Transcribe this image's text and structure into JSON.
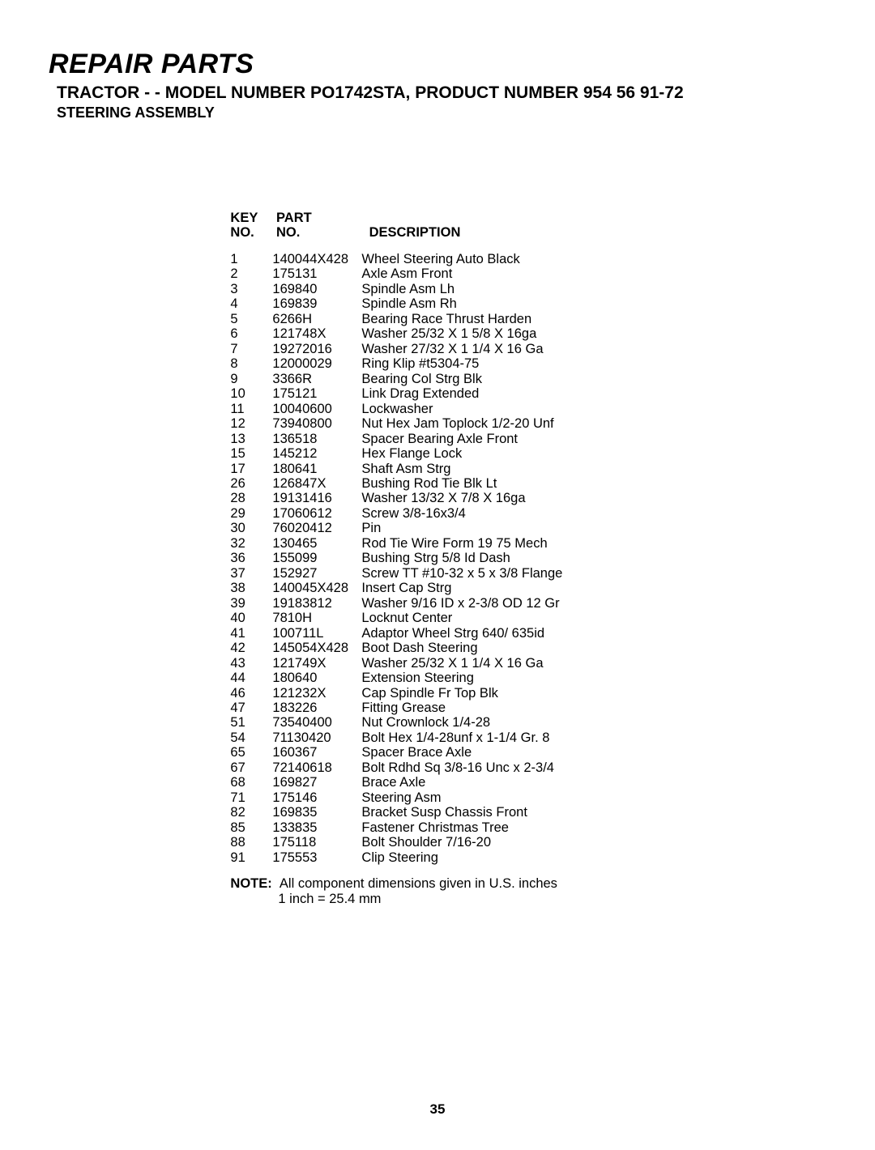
{
  "header": {
    "section_title": "REPAIR PARTS",
    "subtitle": "TRACTOR - - MODEL NUMBER PO1742STA, PRODUCT NUMBER 954 56 91-72",
    "assembly": "STEERING ASSEMBLY"
  },
  "table": {
    "columns": {
      "key_line1": "KEY",
      "key_line2": "NO.",
      "part_line1": "PART",
      "part_line2": "NO.",
      "desc": "DESCRIPTION"
    },
    "rows": [
      {
        "key": "1",
        "part": "140044X428",
        "desc": "Wheel Steering Auto Black"
      },
      {
        "key": "2",
        "part": "175131",
        "desc": "Axle Asm Front"
      },
      {
        "key": "3",
        "part": "169840",
        "desc": "Spindle Asm Lh"
      },
      {
        "key": "4",
        "part": "169839",
        "desc": "Spindle Asm Rh"
      },
      {
        "key": "5",
        "part": "6266H",
        "desc": "Bearing Race Thrust Harden"
      },
      {
        "key": "6",
        "part": "121748X",
        "desc": "Washer 25/32 X 1 5/8 X 16ga"
      },
      {
        "key": "7",
        "part": "19272016",
        "desc": "Washer 27/32 X 1 1/4 X 16 Ga"
      },
      {
        "key": "8",
        "part": "12000029",
        "desc": "Ring Klip #t5304-75"
      },
      {
        "key": "9",
        "part": "3366R",
        "desc": "Bearing Col Strg Blk"
      },
      {
        "key": "10",
        "part": "175121",
        "desc": "Link Drag Extended"
      },
      {
        "key": "11",
        "part": "10040600",
        "desc": "Lockwasher"
      },
      {
        "key": "12",
        "part": "73940800",
        "desc": "Nut Hex Jam Toplock 1/2-20 Unf"
      },
      {
        "key": "13",
        "part": "136518",
        "desc": "Spacer Bearing Axle Front"
      },
      {
        "key": "15",
        "part": "145212",
        "desc": "Hex Flange Lock"
      },
      {
        "key": "17",
        "part": "180641",
        "desc": "Shaft Asm Strg"
      },
      {
        "key": "26",
        "part": "126847X",
        "desc": "Bushing Rod Tie Blk Lt"
      },
      {
        "key": "28",
        "part": "19131416",
        "desc": "Washer 13/32 X 7/8 X 16ga"
      },
      {
        "key": "29",
        "part": "17060612",
        "desc": "Screw  3/8-16x3/4"
      },
      {
        "key": "30",
        "part": "76020412",
        "desc": "Pin"
      },
      {
        "key": "32",
        "part": "130465",
        "desc": "Rod Tie Wire Form 19 75 Mech"
      },
      {
        "key": "36",
        "part": "155099",
        "desc": "Bushing Strg 5/8 Id Dash"
      },
      {
        "key": "37",
        "part": "152927",
        "desc": "Screw TT #10-32 x 5 x 3/8 Flange"
      },
      {
        "key": "38",
        "part": "140045X428",
        "desc": "Insert Cap Strg"
      },
      {
        "key": "39",
        "part": "19183812",
        "desc": "Washer 9/16 ID x 2-3/8 OD 12 Gr"
      },
      {
        "key": "40",
        "part": "7810H",
        "desc": "Locknut Center"
      },
      {
        "key": "41",
        "part": "100711L",
        "desc": "Adaptor Wheel Strg  640/ 635id"
      },
      {
        "key": "42",
        "part": "145054X428",
        "desc": "Boot Dash Steering"
      },
      {
        "key": "43",
        "part": "121749X",
        "desc": "Washer 25/32 X 1 1/4 X 16 Ga"
      },
      {
        "key": "44",
        "part": "180640",
        "desc": "Extension Steering"
      },
      {
        "key": "46",
        "part": "121232X",
        "desc": "Cap Spindle Fr Top Blk"
      },
      {
        "key": "47",
        "part": "183226",
        "desc": "Fitting Grease"
      },
      {
        "key": "51",
        "part": "73540400",
        "desc": "Nut Crownlock 1/4-28"
      },
      {
        "key": "54",
        "part": "71130420",
        "desc": "Bolt Hex 1/4-28unf x 1-1/4 Gr. 8"
      },
      {
        "key": "65",
        "part": "160367",
        "desc": "Spacer Brace Axle"
      },
      {
        "key": "67",
        "part": "72140618",
        "desc": "Bolt Rdhd Sq 3/8-16 Unc x 2-3/4"
      },
      {
        "key": "68",
        "part": "169827",
        "desc": "Brace Axle"
      },
      {
        "key": "71",
        "part": "175146",
        "desc": "Steering Asm"
      },
      {
        "key": "82",
        "part": "169835",
        "desc": "Bracket Susp Chassis Front"
      },
      {
        "key": "85",
        "part": "133835",
        "desc": "Fastener Christmas Tree"
      },
      {
        "key": "88",
        "part": "175118",
        "desc": "Bolt Shoulder 7/16-20"
      },
      {
        "key": "91",
        "part": "175553",
        "desc": "Clip Steering"
      }
    ]
  },
  "note": {
    "label": "NOTE:",
    "line1": "All component dimensions given in U.S. inches",
    "line2": "1 inch = 25.4 mm"
  },
  "page_number": "35"
}
